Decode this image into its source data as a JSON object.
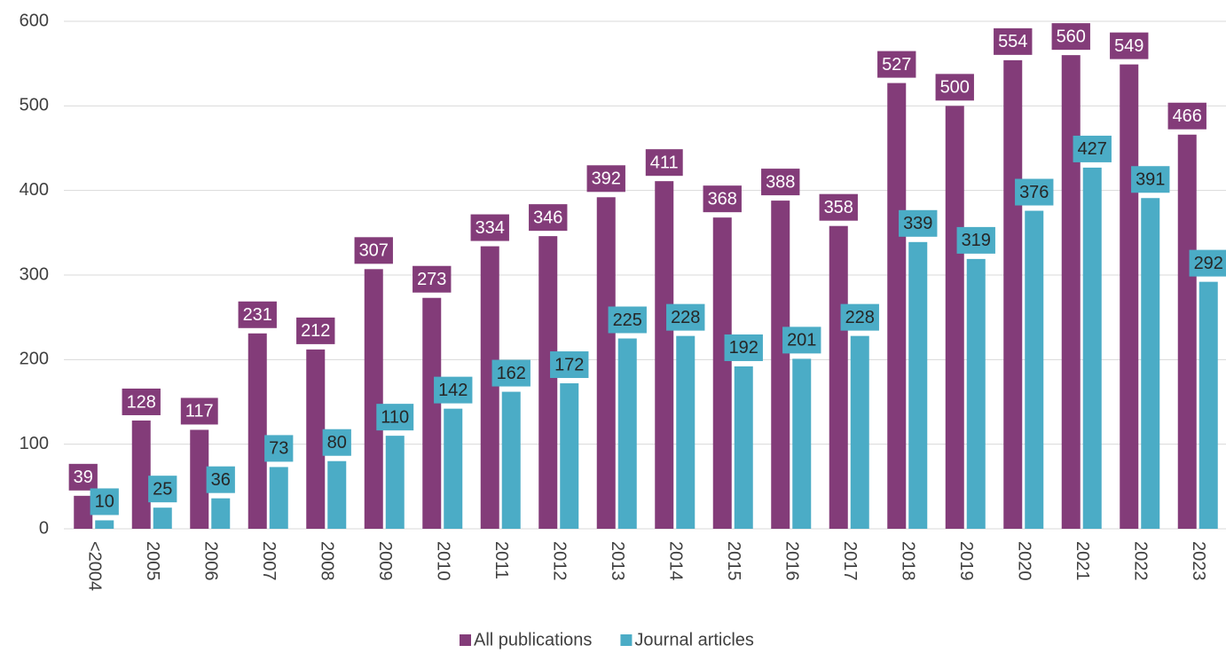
{
  "chart_data": {
    "type": "bar",
    "categories": [
      "<2004",
      "2005",
      "2006",
      "2007",
      "2008",
      "2009",
      "2010",
      "2011",
      "2012",
      "2013",
      "2014",
      "2015",
      "2016",
      "2017",
      "2018",
      "2019",
      "2020",
      "2021",
      "2022",
      "2023"
    ],
    "series": [
      {
        "name": "All publications",
        "color": "#833c79",
        "values": [
          39,
          128,
          117,
          231,
          212,
          307,
          273,
          334,
          346,
          392,
          411,
          368,
          388,
          358,
          527,
          500,
          554,
          560,
          549,
          466
        ]
      },
      {
        "name": "Journal articles",
        "color": "#4bacc6",
        "values": [
          10,
          25,
          36,
          73,
          80,
          110,
          142,
          162,
          172,
          225,
          228,
          192,
          201,
          228,
          339,
          319,
          376,
          427,
          391,
          292
        ]
      }
    ],
    "ylim": [
      0,
      600
    ],
    "yticks": [
      0,
      100,
      200,
      300,
      400,
      500,
      600
    ],
    "grid": true,
    "legend": "bottom"
  }
}
